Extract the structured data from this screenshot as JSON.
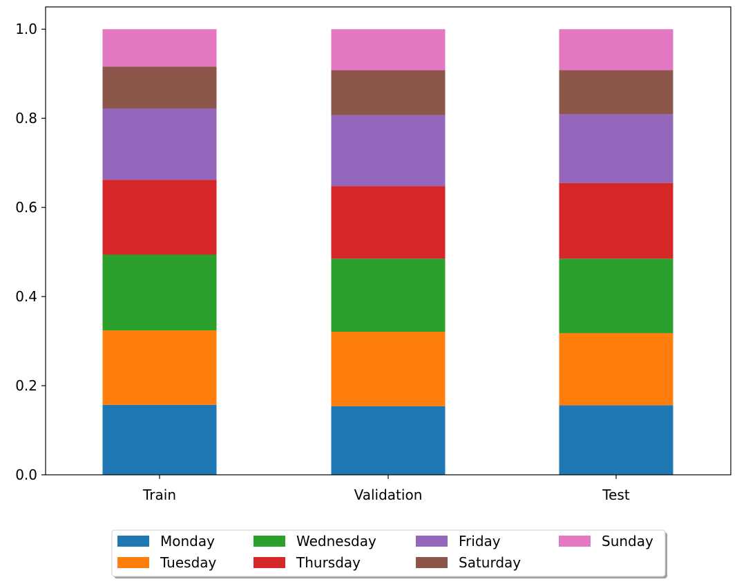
{
  "chart_data": {
    "type": "bar",
    "stacked": true,
    "title": "",
    "xlabel": "",
    "ylabel": "",
    "ylim": [
      0,
      1.05
    ],
    "yticks": [
      0.0,
      0.2,
      0.4,
      0.6,
      0.8,
      1.0
    ],
    "ytick_labels": [
      "0.0",
      "0.2",
      "0.4",
      "0.6",
      "0.8",
      "1.0"
    ],
    "categories": [
      "Train",
      "Validation",
      "Test"
    ],
    "legend_position": "bottom-center",
    "legend_columns": 4,
    "grid": false,
    "series": [
      {
        "name": "Monday",
        "color": "#1f77b4",
        "values": [
          0.157,
          0.154,
          0.156
        ]
      },
      {
        "name": "Tuesday",
        "color": "#ff7f0e",
        "values": [
          0.167,
          0.167,
          0.162
        ]
      },
      {
        "name": "Wednesday",
        "color": "#2ca02c",
        "values": [
          0.17,
          0.164,
          0.167
        ]
      },
      {
        "name": "Thursday",
        "color": "#d62728",
        "values": [
          0.168,
          0.163,
          0.17
        ]
      },
      {
        "name": "Friday",
        "color": "#9467bd",
        "values": [
          0.16,
          0.159,
          0.154
        ]
      },
      {
        "name": "Saturday",
        "color": "#8c564b",
        "values": [
          0.094,
          0.101,
          0.099
        ]
      },
      {
        "name": "Sunday",
        "color": "#e377c2",
        "values": [
          0.084,
          0.092,
          0.092
        ]
      }
    ]
  }
}
